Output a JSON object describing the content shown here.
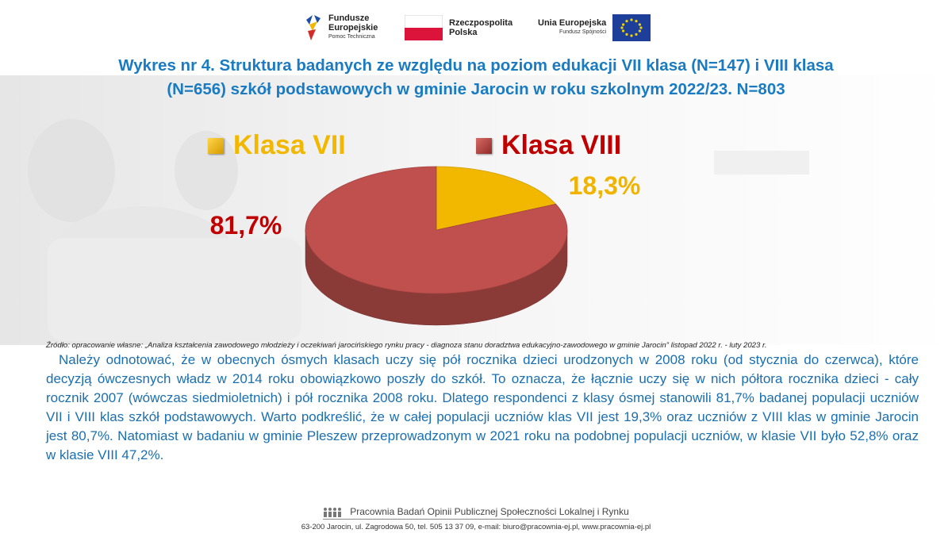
{
  "logos": {
    "fe": {
      "line1": "Fundusze",
      "line2": "Europejskie",
      "sub": "Pomoc Techniczna"
    },
    "rp": {
      "line1": "Rzeczpospolita",
      "line2": "Polska"
    },
    "ue": {
      "line1": "Unia Europejska",
      "sub": "Fundusz Spójności"
    }
  },
  "title": {
    "line1": "Wykres nr 4. Struktura badanych ze względu na poziom edukacji VII klasa (N=147) i VIII klasa",
    "line2": "(N=656) szkół podstawowych w gminie Jarocin w roku szkolnym 2022/23. N=803"
  },
  "chart_data": {
    "type": "pie",
    "style": "3d",
    "categories": [
      "Klasa VII",
      "Klasa VIII"
    ],
    "values": [
      18.3,
      81.7
    ],
    "data_labels": [
      "18,3%",
      "81,7%"
    ],
    "colors": [
      "#f2b800",
      "#c0504d"
    ],
    "label_colors": [
      "#f0b400",
      "#c00000"
    ],
    "legend_placement": "top"
  },
  "source": "Źródło: opracowanie własne: „Analiza kształcenia zawodowego młodzieży i oczekiwań jarocińskiego rynku pracy - diagnoza stanu doradztwa edukacyjno-zawodowego w gminie Jarocin” listopad 2022 r. - luty 2023 r.",
  "body": "Należy odnotować, że w obecnych ósmych klasach uczy się pół rocznika dzieci urodzonych w 2008 roku (od stycznia do czerwca), które decyzją ówczesnych władz w 2014 roku obowiązkowo poszły do szkół. To oznacza, że łącznie uczy się w nich półtora rocznika dzieci - cały rocznik 2007 (wówczas siedmioletnich) i pół rocznika 2008 roku. Dlatego respondenci z klasy ósmej stanowili 81,7% badanej populacji uczniów VII i VIII klas szkół podstawowych. Warto podkreślić, że w całej populacji uczniów klas VII jest 19,3% oraz uczniów z VIII klas w gminie Jarocin jest 80,7%. Natomiast w badaniu w gminie Pleszew przeprowadzonym w 2021 roku na podobnej populacji uczniów, w klasie VII było 52,8% oraz w klasie VIII 47,2%.",
  "footer": {
    "org": "Pracownia Badań Opinii Publicznej Społeczności Lokalnej i Rynku",
    "address": "63-200 Jarocin, ul. Zagrodowa 50, tel. 505 13 37 09, e-mail: biuro@pracownia-ej.pl, www.pracownia-ej.pl"
  }
}
